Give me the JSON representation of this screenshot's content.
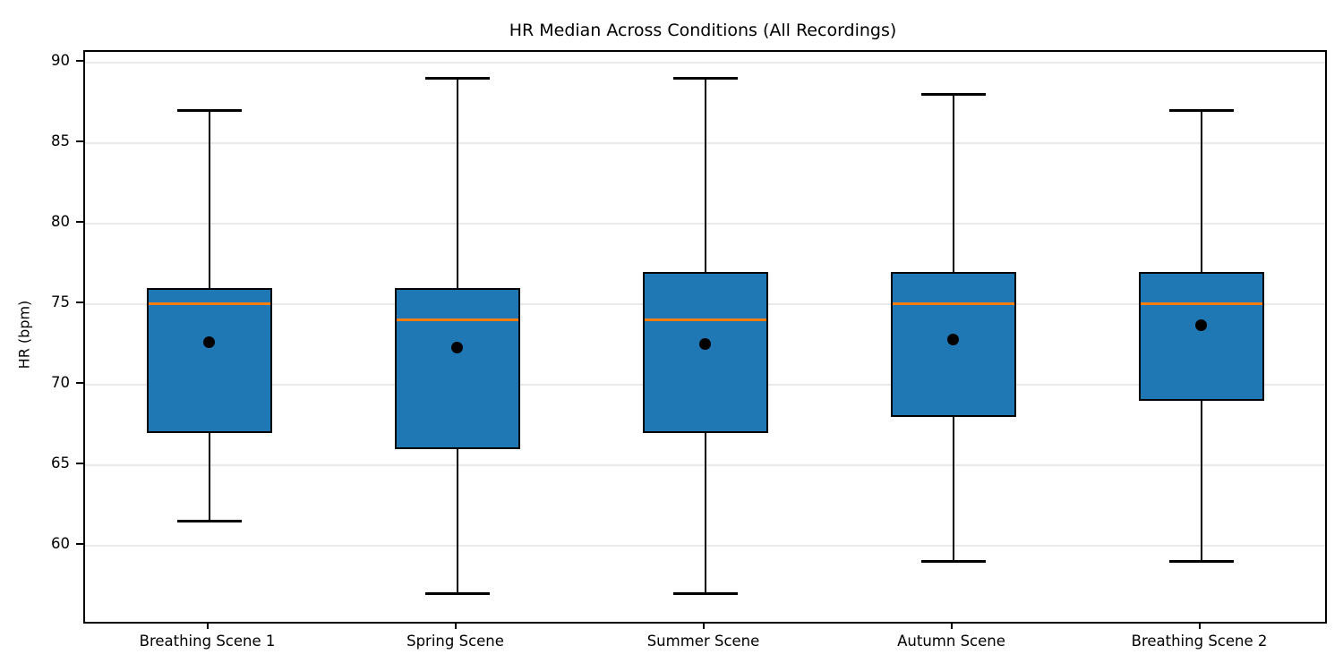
{
  "chart_data": {
    "type": "boxplot",
    "title": "HR Median Across Conditions (All Recordings)",
    "xlabel": "",
    "ylabel": "HR (bpm)",
    "categories": [
      "Breathing Scene 1",
      "Spring Scene",
      "Summer Scene",
      "Autumn Scene",
      "Breathing Scene 2"
    ],
    "boxes": [
      {
        "label": "Breathing Scene 1",
        "whisker_low": 61.5,
        "q1": 67,
        "median": 75,
        "q3": 76,
        "whisker_high": 87,
        "mean": 72.6
      },
      {
        "label": "Spring Scene",
        "whisker_low": 57,
        "q1": 66,
        "median": 74,
        "q3": 76,
        "whisker_high": 89,
        "mean": 72.3
      },
      {
        "label": "Summer Scene",
        "whisker_low": 57,
        "q1": 67,
        "median": 74,
        "q3": 77,
        "whisker_high": 89,
        "mean": 72.5
      },
      {
        "label": "Autumn Scene",
        "whisker_low": 59,
        "q1": 68,
        "median": 75,
        "q3": 77,
        "whisker_high": 88,
        "mean": 72.8
      },
      {
        "label": "Breathing Scene 2",
        "whisker_low": 59,
        "q1": 69,
        "median": 75,
        "q3": 77,
        "whisker_high": 87,
        "mean": 73.7
      }
    ],
    "yticks": [
      60,
      65,
      70,
      75,
      80,
      85,
      90
    ],
    "ylim": [
      55.25,
      90.65
    ],
    "grid": "horizontal",
    "legend": "none",
    "colors": {
      "box_fill": "#1f77b4",
      "box_edge": "#000000",
      "median_line": "#ff7f0e",
      "mean_marker": "#000000",
      "grid_line": "#e9e9e9",
      "axis": "#000000",
      "background": "#ffffff"
    }
  }
}
